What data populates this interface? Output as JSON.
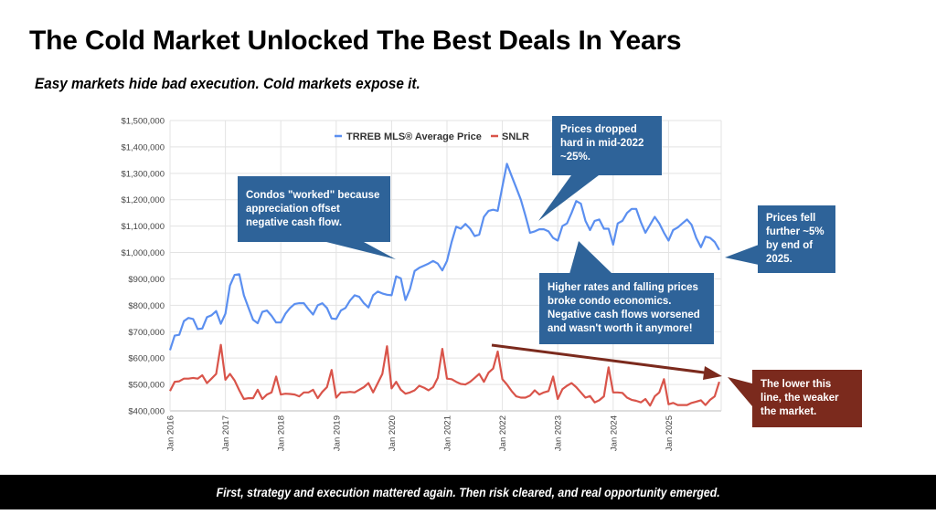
{
  "title": "The Cold Market Unlocked The Best Deals In Years",
  "subtitle": "Easy markets hide bad execution. Cold markets expose it.",
  "footer": "First, strategy and execution mattered again. Then risk cleared, and real opportunity emerged.",
  "callouts": {
    "condos_worked": [
      "Condos \"worked\" because",
      "appreciation offset",
      "negative cash flow."
    ],
    "prices_dropped": [
      "Prices dropped",
      "hard in mid-2022",
      "~25%."
    ],
    "prices_fell": [
      "Prices fell",
      "further ~5%",
      "by end of",
      "2025."
    ],
    "higher_rates": [
      "Higher rates and falling prices",
      "broke condo economics.",
      "Negative cash flows worsened",
      "and wasn't worth it anymore!"
    ],
    "lower_line": [
      "The lower this",
      "line, the weaker",
      "the market."
    ]
  },
  "colors": {
    "blue_series": "#5b8ff0",
    "red_series": "#d9544a",
    "callout_blue": "#2e6399",
    "callout_red": "#7b2a1d"
  },
  "chart_data": {
    "type": "line",
    "title": "",
    "xlabel": "",
    "ylabel": "",
    "ylim": [
      400000,
      1500000
    ],
    "yticks": [
      "$400,000",
      "$500,000",
      "$600,000",
      "$700,000",
      "$800,000",
      "$900,000",
      "$1,000,000",
      "$1,100,000",
      "$1,200,000",
      "$1,300,000",
      "$1,400,000",
      "$1,500,000"
    ],
    "xticks": [
      "Jan 2016",
      "Jan 2017",
      "Jan 2018",
      "Jan 2019",
      "Jan 2020",
      "Jan 2021",
      "Jan 2022",
      "Jan 2023",
      "Jan 2024",
      "Jan 2025"
    ],
    "x_range": [
      "Jan 2016",
      "Dec 2025"
    ],
    "grid": true,
    "legend_position": "top-center",
    "series": [
      {
        "name": "TRREB MLS® Average Price",
        "values": [
          630000,
          685000,
          688000,
          740000,
          752000,
          748000,
          710000,
          712000,
          755000,
          762000,
          778000,
          730000,
          768000,
          875000,
          915000,
          918000,
          838000,
          790000,
          745000,
          732000,
          775000,
          780000,
          760000,
          735000,
          735000,
          768000,
          790000,
          805000,
          808000,
          808000,
          785000,
          765000,
          800000,
          808000,
          790000,
          750000,
          748000,
          780000,
          790000,
          818000,
          838000,
          832000,
          808000,
          792000,
          838000,
          852000,
          845000,
          840000,
          838000,
          910000,
          902000,
          820000,
          862000,
          930000,
          942000,
          950000,
          958000,
          968000,
          958000,
          932000,
          968000,
          1040000,
          1098000,
          1090000,
          1108000,
          1090000,
          1062000,
          1068000,
          1135000,
          1158000,
          1162000,
          1158000,
          1250000,
          1336000,
          1290000,
          1245000,
          1200000,
          1140000,
          1075000,
          1080000,
          1088000,
          1088000,
          1080000,
          1055000,
          1045000,
          1100000,
          1110000,
          1150000,
          1195000,
          1185000,
          1120000,
          1085000,
          1120000,
          1125000,
          1090000,
          1090000,
          1030000,
          1110000,
          1120000,
          1150000,
          1165000,
          1165000,
          1115000,
          1075000,
          1105000,
          1135000,
          1110000,
          1075000,
          1045000,
          1085000,
          1095000,
          1110000,
          1125000,
          1105000,
          1055000,
          1020000,
          1060000,
          1055000,
          1040000,
          1010000
        ]
      },
      {
        "name": "SNLR",
        "values": [
          475000,
          510000,
          512000,
          522000,
          522000,
          525000,
          522000,
          535000,
          505000,
          522000,
          540000,
          650000,
          518000,
          540000,
          515000,
          478000,
          445000,
          448000,
          448000,
          480000,
          445000,
          462000,
          470000,
          530000,
          462000,
          465000,
          464000,
          462000,
          455000,
          470000,
          470000,
          480000,
          448000,
          472000,
          490000,
          555000,
          450000,
          470000,
          470000,
          472000,
          470000,
          480000,
          490000,
          505000,
          470000,
          505000,
          540000,
          645000,
          485000,
          510000,
          480000,
          465000,
          470000,
          478000,
          495000,
          488000,
          478000,
          490000,
          525000,
          635000,
          522000,
          520000,
          510000,
          502000,
          500000,
          510000,
          525000,
          540000,
          510000,
          545000,
          560000,
          625000,
          520000,
          500000,
          475000,
          455000,
          450000,
          450000,
          458000,
          478000,
          462000,
          470000,
          475000,
          530000,
          445000,
          482000,
          495000,
          505000,
          490000,
          470000,
          450000,
          456000,
          432000,
          440000,
          455000,
          565000,
          470000,
          470000,
          468000,
          450000,
          442000,
          438000,
          432000,
          445000,
          420000,
          455000,
          470000,
          520000,
          425000,
          430000,
          422000,
          422000,
          422000,
          430000,
          435000,
          440000,
          422000,
          442000,
          455000,
          510000
        ]
      }
    ]
  }
}
